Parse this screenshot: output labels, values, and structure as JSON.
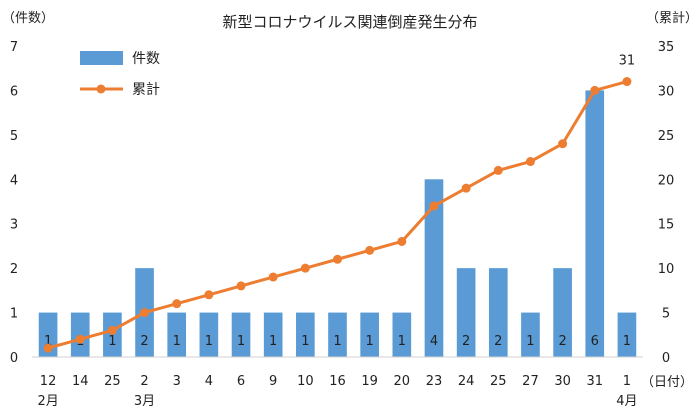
{
  "chart_data": {
    "type": "bar",
    "title": "新型コロナウイルス関連倒産発生分布",
    "ylabel_left": "（件数）",
    "ylabel_right": "（累計）",
    "xlabel": "（日付）",
    "categories": [
      "12",
      "14",
      "25",
      "2",
      "3",
      "4",
      "6",
      "9",
      "10",
      "16",
      "19",
      "20",
      "23",
      "24",
      "25",
      "27",
      "30",
      "31",
      "1"
    ],
    "month_labels": [
      {
        "index": 0,
        "label": "2月"
      },
      {
        "index": 3,
        "label": "3月"
      },
      {
        "index": 18,
        "label": "4月"
      }
    ],
    "ylim_left": [
      0,
      7
    ],
    "yticks_left": [
      "0",
      "1",
      "2",
      "3",
      "4",
      "5",
      "6",
      "7"
    ],
    "ylim_right": [
      0,
      35
    ],
    "yticks_right": [
      "0",
      "5",
      "10",
      "15",
      "20",
      "25",
      "30",
      "35"
    ],
    "series": [
      {
        "name": "件数",
        "type": "bar",
        "axis": "left",
        "color": "#5b9bd5",
        "values": [
          1,
          1,
          1,
          2,
          1,
          1,
          1,
          1,
          1,
          1,
          1,
          1,
          4,
          2,
          2,
          1,
          2,
          6,
          1
        ],
        "labels": [
          "1",
          "1",
          "1",
          "2",
          "1",
          "1",
          "1",
          "1",
          "1",
          "1",
          "1",
          "1",
          "4",
          "2",
          "2",
          "1",
          "2",
          "6",
          "1"
        ]
      },
      {
        "name": "累計",
        "type": "line",
        "axis": "right",
        "color": "#ed7d31",
        "values": [
          1,
          2,
          3,
          5,
          6,
          7,
          8,
          9,
          10,
          11,
          12,
          13,
          17,
          19,
          21,
          22,
          24,
          30,
          31
        ],
        "end_label": "31"
      }
    ],
    "legend": "top-left",
    "grid": false
  }
}
